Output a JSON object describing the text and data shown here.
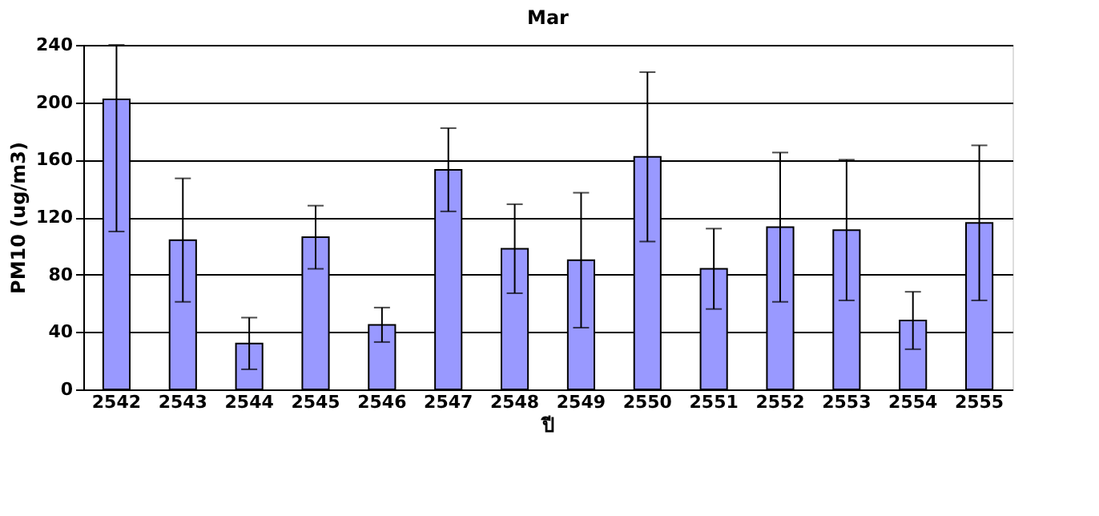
{
  "chart_data": {
    "type": "bar",
    "title": "Mar",
    "xlabel": "ปี",
    "ylabel": "PM10 (ug/m3)",
    "categories": [
      "2542",
      "2543",
      "2544",
      "2545",
      "2546",
      "2547",
      "2548",
      "2549",
      "2550",
      "2551",
      "2552",
      "2553",
      "2554",
      "2555"
    ],
    "values": [
      202,
      104,
      32,
      106,
      45,
      153,
      98,
      90,
      162,
      84,
      113,
      111,
      48,
      116
    ],
    "errors": [
      [
        110,
        240
      ],
      43,
      18,
      22,
      12,
      29,
      31,
      47,
      59,
      28,
      52,
      49,
      20,
      54
    ],
    "color": "#9999ff",
    "ylim": [
      0,
      240
    ],
    "yticks": [
      0,
      40,
      80,
      120,
      160,
      200,
      240
    ],
    "grid": "y"
  }
}
